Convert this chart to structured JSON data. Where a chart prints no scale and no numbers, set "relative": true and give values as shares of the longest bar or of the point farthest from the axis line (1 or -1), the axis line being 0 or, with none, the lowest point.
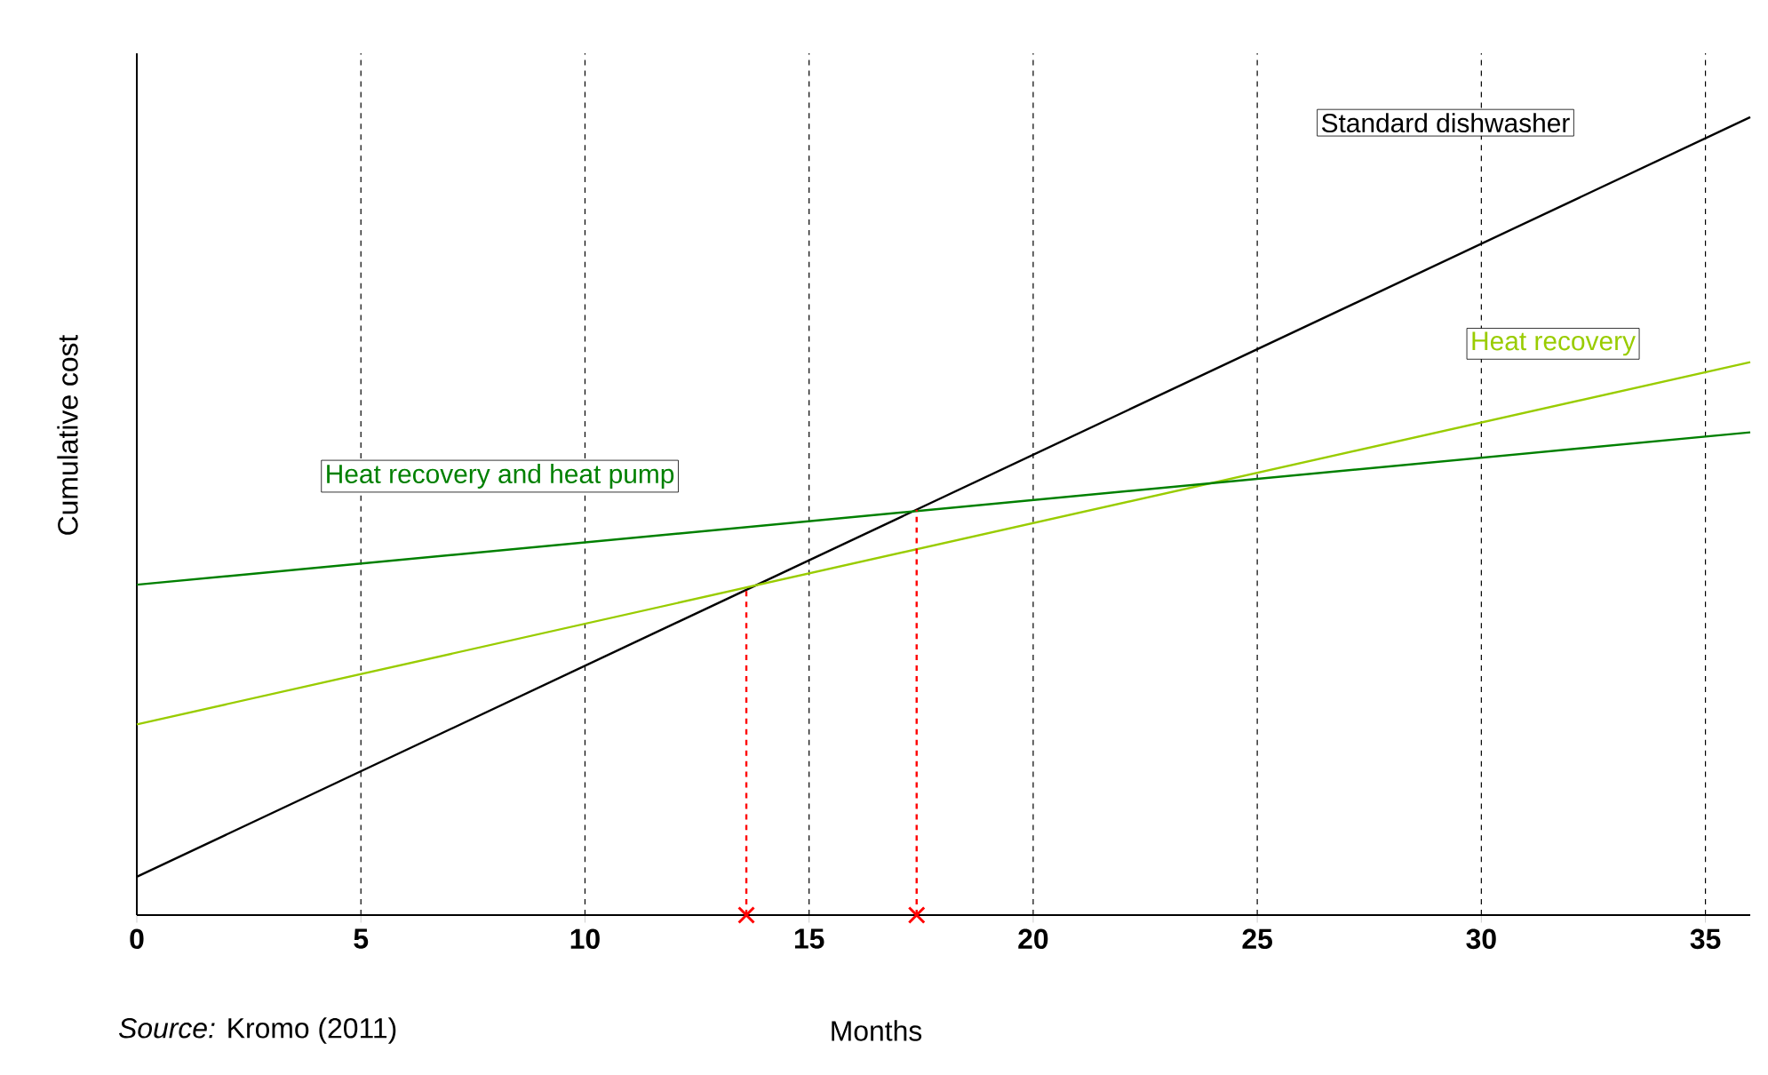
{
  "chart_data": {
    "type": "line",
    "relative": true,
    "xlabel": "Months",
    "ylabel": "Cumulative cost",
    "annotations": [
      "*Source:* Kromo (2011)"
    ],
    "xlim": [
      0,
      36
    ],
    "xticks": [
      0,
      5,
      10,
      15,
      20,
      25,
      30,
      35
    ],
    "grid": "x",
    "marker": "none",
    "line_style": "solid",
    "series": [
      {
        "name": "Standard dishwasher",
        "color": "#000000",
        "x": [
          0,
          36
        ],
        "values": [
          0.048,
          1
        ]
      },
      {
        "name": "Heat recovery",
        "color": "#99cc00",
        "x": [
          0,
          36
        ],
        "values": [
          0.239,
          0.693
        ]
      },
      {
        "name": "Heat recovery and heat pump",
        "color": "#008000",
        "x": [
          0,
          36
        ],
        "values": [
          0.414,
          0.605
        ]
      },
      {
        "color": "#ff0000",
        "type": "line",
        "line_style": "dashed",
        "x": [
          13.6,
          13.6
        ],
        "values": [
          0,
          0.408
        ]
      },
      {
        "color": "#ff0000",
        "type": "line",
        "line_style": "dashed",
        "x": [
          17.4,
          17.4
        ],
        "values": [
          0,
          0.508
        ]
      },
      {
        "color": "#ff0000",
        "type": "scatter",
        "marker": "cross",
        "x": [
          13.6,
          17.4
        ],
        "values": [
          0,
          0
        ]
      }
    ]
  }
}
